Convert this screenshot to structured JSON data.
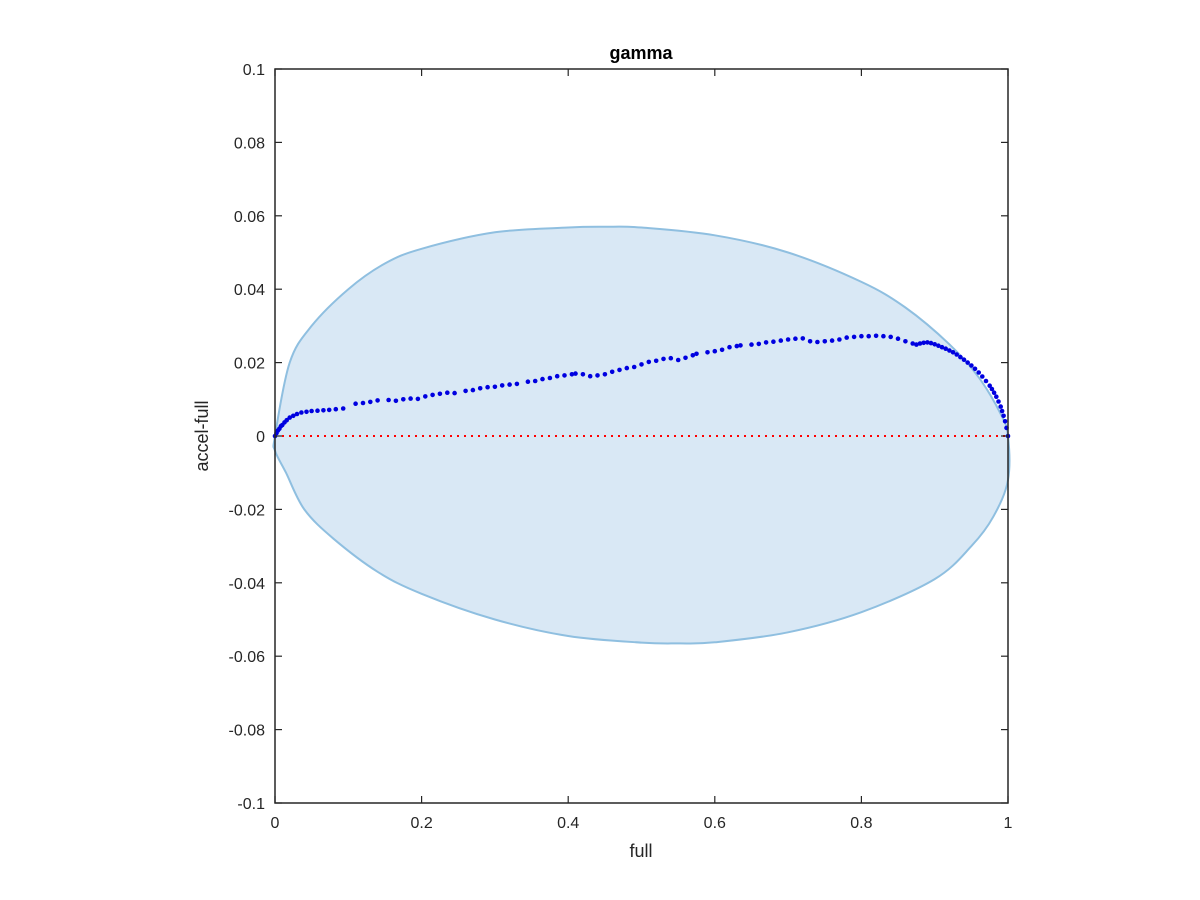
{
  "chart_data": {
    "type": "scatter",
    "title": "gamma",
    "xlabel": "full",
    "ylabel": "accel-full",
    "xlim": [
      0,
      1
    ],
    "ylim": [
      -0.1,
      0.1
    ],
    "xticks": [
      0,
      0.2,
      0.4,
      0.6,
      0.8,
      1
    ],
    "xtick_labels": [
      "0",
      "0.2",
      "0.4",
      "0.6",
      "0.8",
      "1"
    ],
    "yticks": [
      -0.1,
      -0.08,
      -0.06,
      -0.04,
      -0.02,
      0,
      0.02,
      0.04,
      0.06,
      0.08,
      0.1
    ],
    "ytick_labels": [
      "-0.1",
      "-0.08",
      "-0.06",
      "-0.04",
      "-0.02",
      "0",
      "0.02",
      "0.04",
      "0.06",
      "0.08",
      "0.1"
    ],
    "grid": false,
    "reference_line": {
      "y": 0,
      "style": "dotted",
      "color": "#ff0000"
    },
    "region": {
      "shape": "ellipse",
      "fill": "#d9e8f5",
      "edge": "#8fbfe0",
      "boundary": [
        [
          0.0,
          0.0
        ],
        [
          0.02,
          0.02
        ],
        [
          0.05,
          0.03
        ],
        [
          0.1,
          0.04
        ],
        [
          0.15,
          0.047
        ],
        [
          0.2,
          0.051
        ],
        [
          0.3,
          0.0555
        ],
        [
          0.4,
          0.0568
        ],
        [
          0.45,
          0.057
        ],
        [
          0.5,
          0.0568
        ],
        [
          0.6,
          0.0547
        ],
        [
          0.7,
          0.05
        ],
        [
          0.8,
          0.042
        ],
        [
          0.86,
          0.035
        ],
        [
          0.92,
          0.025
        ],
        [
          0.96,
          0.016
        ],
        [
          0.99,
          0.006
        ],
        [
          1.0,
          0.0
        ],
        [
          1.0,
          -0.012
        ],
        [
          0.98,
          -0.022
        ],
        [
          0.95,
          -0.03
        ],
        [
          0.9,
          -0.039
        ],
        [
          0.8,
          -0.048
        ],
        [
          0.7,
          -0.0535
        ],
        [
          0.6,
          -0.0562
        ],
        [
          0.55,
          -0.0565
        ],
        [
          0.5,
          -0.0563
        ],
        [
          0.4,
          -0.0545
        ],
        [
          0.3,
          -0.05
        ],
        [
          0.2,
          -0.043
        ],
        [
          0.14,
          -0.037
        ],
        [
          0.08,
          -0.028
        ],
        [
          0.04,
          -0.02
        ],
        [
          0.015,
          -0.01
        ],
        [
          0.0,
          -0.004
        ]
      ]
    },
    "series": [
      {
        "color": "#0000e0",
        "points": [
          [
            0,
            0
          ],
          [
            0.002,
            0.0008
          ],
          [
            0.004,
            0.0015
          ],
          [
            0.006,
            0.002
          ],
          [
            0.008,
            0.0027
          ],
          [
            0.01,
            0.003
          ],
          [
            0.013,
            0.0037
          ],
          [
            0.016,
            0.0043
          ],
          [
            0.02,
            0.005
          ],
          [
            0.025,
            0.0055
          ],
          [
            0.03,
            0.006
          ],
          [
            0.036,
            0.0064
          ],
          [
            0.043,
            0.0066
          ],
          [
            0.05,
            0.0068
          ],
          [
            0.058,
            0.0069
          ],
          [
            0.066,
            0.007
          ],
          [
            0.074,
            0.0071
          ],
          [
            0.083,
            0.0073
          ],
          [
            0.093,
            0.0075
          ],
          [
            0.11,
            0.0088
          ],
          [
            0.12,
            0.009
          ],
          [
            0.13,
            0.0093
          ],
          [
            0.14,
            0.0097
          ],
          [
            0.155,
            0.0098
          ],
          [
            0.165,
            0.0096
          ],
          [
            0.175,
            0.01
          ],
          [
            0.185,
            0.0102
          ],
          [
            0.195,
            0.0101
          ],
          [
            0.205,
            0.0108
          ],
          [
            0.215,
            0.0112
          ],
          [
            0.225,
            0.0115
          ],
          [
            0.235,
            0.0118
          ],
          [
            0.245,
            0.0117
          ],
          [
            0.26,
            0.0123
          ],
          [
            0.27,
            0.0125
          ],
          [
            0.28,
            0.013
          ],
          [
            0.29,
            0.0133
          ],
          [
            0.3,
            0.0134
          ],
          [
            0.31,
            0.0138
          ],
          [
            0.32,
            0.014
          ],
          [
            0.33,
            0.0142
          ],
          [
            0.345,
            0.0148
          ],
          [
            0.355,
            0.015
          ],
          [
            0.365,
            0.0155
          ],
          [
            0.375,
            0.0158
          ],
          [
            0.385,
            0.0163
          ],
          [
            0.395,
            0.0165
          ],
          [
            0.405,
            0.0168
          ],
          [
            0.41,
            0.017
          ],
          [
            0.42,
            0.0168
          ],
          [
            0.43,
            0.0163
          ],
          [
            0.44,
            0.0165
          ],
          [
            0.45,
            0.0168
          ],
          [
            0.46,
            0.0175
          ],
          [
            0.47,
            0.018
          ],
          [
            0.48,
            0.0185
          ],
          [
            0.49,
            0.0188
          ],
          [
            0.5,
            0.0195
          ],
          [
            0.51,
            0.0202
          ],
          [
            0.52,
            0.0205
          ],
          [
            0.53,
            0.021
          ],
          [
            0.54,
            0.0212
          ],
          [
            0.55,
            0.0207
          ],
          [
            0.56,
            0.0213
          ],
          [
            0.57,
            0.022
          ],
          [
            0.575,
            0.0224
          ],
          [
            0.59,
            0.0228
          ],
          [
            0.6,
            0.0231
          ],
          [
            0.61,
            0.0235
          ],
          [
            0.62,
            0.0242
          ],
          [
            0.63,
            0.0245
          ],
          [
            0.635,
            0.0247
          ],
          [
            0.65,
            0.0249
          ],
          [
            0.66,
            0.0251
          ],
          [
            0.67,
            0.0255
          ],
          [
            0.68,
            0.0257
          ],
          [
            0.69,
            0.026
          ],
          [
            0.7,
            0.0263
          ],
          [
            0.71,
            0.0265
          ],
          [
            0.72,
            0.0266
          ],
          [
            0.73,
            0.0258
          ],
          [
            0.74,
            0.0256
          ],
          [
            0.75,
            0.0258
          ],
          [
            0.76,
            0.026
          ],
          [
            0.77,
            0.0263
          ],
          [
            0.78,
            0.0268
          ],
          [
            0.79,
            0.027
          ],
          [
            0.8,
            0.0272
          ],
          [
            0.81,
            0.0272
          ],
          [
            0.82,
            0.0273
          ],
          [
            0.83,
            0.0272
          ],
          [
            0.84,
            0.027
          ],
          [
            0.85,
            0.0265
          ],
          [
            0.86,
            0.0258
          ],
          [
            0.87,
            0.0252
          ],
          [
            0.875,
            0.0249
          ],
          [
            0.88,
            0.0252
          ],
          [
            0.885,
            0.0254
          ],
          [
            0.89,
            0.0255
          ],
          [
            0.895,
            0.0253
          ],
          [
            0.9,
            0.025
          ],
          [
            0.905,
            0.0246
          ],
          [
            0.91,
            0.0242
          ],
          [
            0.915,
            0.0238
          ],
          [
            0.92,
            0.0233
          ],
          [
            0.925,
            0.0228
          ],
          [
            0.93,
            0.0222
          ],
          [
            0.935,
            0.0215
          ],
          [
            0.94,
            0.0208
          ],
          [
            0.945,
            0.02
          ],
          [
            0.95,
            0.0192
          ],
          [
            0.955,
            0.0183
          ],
          [
            0.96,
            0.0173
          ],
          [
            0.965,
            0.0162
          ],
          [
            0.97,
            0.015
          ],
          [
            0.975,
            0.0137
          ],
          [
            0.978,
            0.0128
          ],
          [
            0.981,
            0.0118
          ],
          [
            0.984,
            0.0107
          ],
          [
            0.987,
            0.0094
          ],
          [
            0.99,
            0.008
          ],
          [
            0.992,
            0.0068
          ],
          [
            0.994,
            0.0055
          ],
          [
            0.996,
            0.004
          ],
          [
            0.998,
            0.0022
          ],
          [
            1.0,
            0.0
          ]
        ]
      }
    ]
  }
}
